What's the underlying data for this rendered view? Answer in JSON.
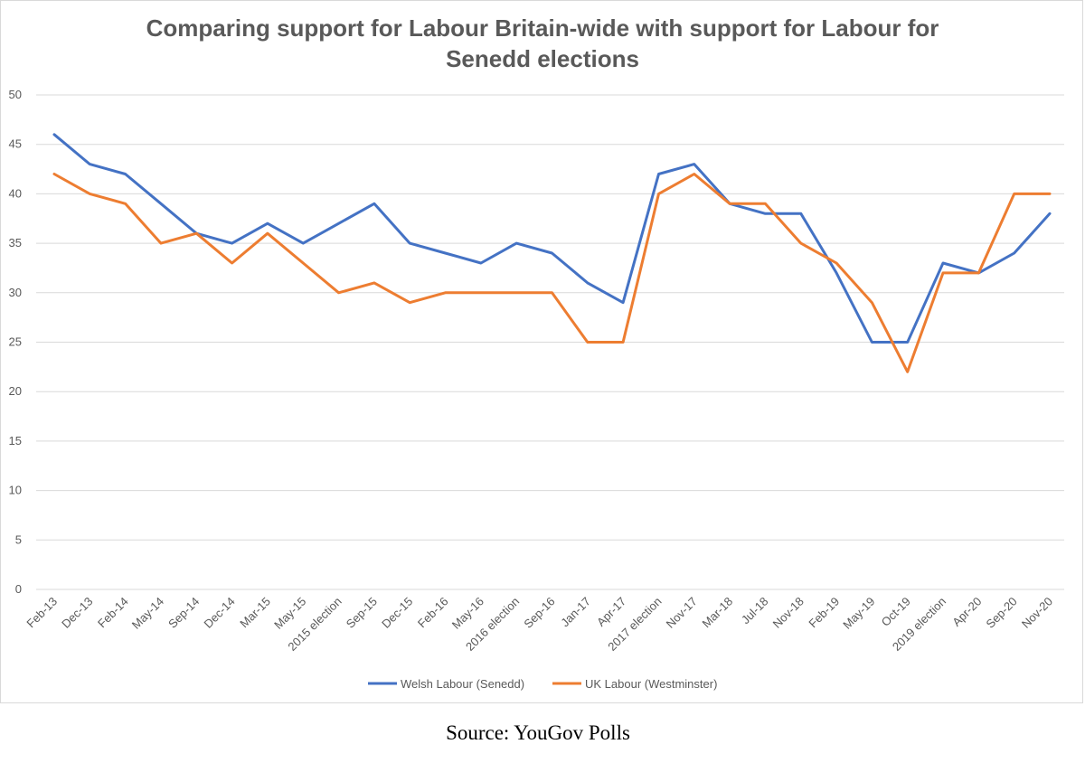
{
  "chart_data": {
    "type": "line",
    "title_lines": [
      "Comparing support for Labour Britain-wide with support for Labour for",
      "Senedd elections"
    ],
    "categories": [
      "Feb-13",
      "Dec-13",
      "Feb-14",
      "May-14",
      "Sep-14",
      "Dec-14",
      "Mar-15",
      "May-15",
      "2015 election",
      "Sep-15",
      "Dec-15",
      "Feb-16",
      "May-16",
      "2016 election",
      "Sep-16",
      "Jan-17",
      "Apr-17",
      "2017 election",
      "Nov-17",
      "Mar-18",
      "Jul-18",
      "Nov-18",
      "Feb-19",
      "May-19",
      "Oct-19",
      "2019 election",
      "Apr-20",
      "Sep-20",
      "Nov-20"
    ],
    "series": [
      {
        "name": "Welsh Labour (Senedd)",
        "color": "#4472c4",
        "values": [
          46,
          43,
          42,
          39,
          36,
          35,
          37,
          35,
          37,
          39,
          35,
          34,
          33,
          35,
          34,
          31,
          29,
          42,
          43,
          39,
          38,
          38,
          32,
          25,
          25,
          33,
          32,
          34,
          38
        ]
      },
      {
        "name": "UK Labour (Westminster)",
        "color": "#ed7d31",
        "values": [
          42,
          40,
          39,
          35,
          36,
          33,
          36,
          33,
          30,
          31,
          29,
          30,
          30,
          30,
          30,
          25,
          25,
          40,
          42,
          39,
          39,
          35,
          33,
          29,
          22,
          32,
          32,
          40,
          40
        ]
      }
    ],
    "ylim": [
      0,
      50
    ],
    "yticks": [
      0,
      5,
      10,
      15,
      20,
      25,
      30,
      35,
      40,
      45,
      50
    ],
    "grid": true,
    "legend_position": "bottom"
  },
  "source_note": "Source: YouGov Polls"
}
